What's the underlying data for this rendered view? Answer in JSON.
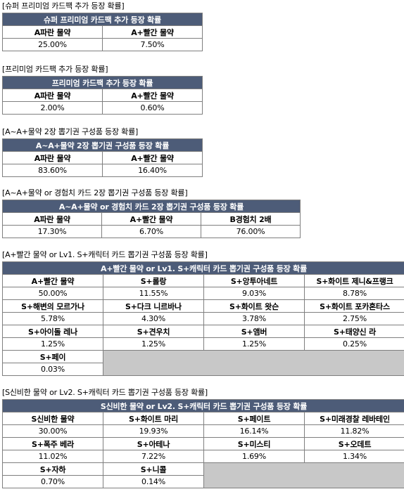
{
  "sections": [
    {
      "title": "[슈퍼 프리미엄 카드팩 추가 등장 확률]",
      "header": "슈퍼 프리미엄 카드팩 추가 등장 확률",
      "rows": [
        [
          {
            "label": "A파란 물약",
            "value": "25.00%"
          },
          {
            "label": "A+빨간 물약",
            "value": "7.50%"
          }
        ]
      ]
    },
    {
      "title": "[프리미엄 카드팩 추가 등장 확률]",
      "header": "프리미엄 카드팩 추가 등장 확률",
      "rows": [
        [
          {
            "label": "A파란 물약",
            "value": "2.00%"
          },
          {
            "label": "A+빨간 물약",
            "value": "0.60%"
          }
        ]
      ]
    },
    {
      "title": "[A~A+물약 2장 뽑기권 구성품 등장 확률]",
      "header": "A~A+물약 2장 뽑기권 구성품 등장 확률",
      "rows": [
        [
          {
            "label": "A파란 물약",
            "value": "83.60%"
          },
          {
            "label": "A+빨간 물약",
            "value": "16.40%"
          }
        ]
      ]
    },
    {
      "title": "[A~A+물약 or 경험치 카드 2장 뽑기권 구성품 등장 확률]",
      "header": "A~A+물약 or 경험치 카드 2장 뽑기권 구성품 등장 확률",
      "rows": [
        [
          {
            "label": "A파란 물약",
            "value": "17.30%"
          },
          {
            "label": "A+빨간 물약",
            "value": "6.70%"
          },
          {
            "label": "B경험치 2배",
            "value": "76.00%"
          }
        ]
      ]
    },
    {
      "title": "[A+빨간 물약 or Lv1. S+캐릭터 카드 뽑기권 구성품 등장 확률]",
      "header": "A+빨간 물약 or Lv1. S+캐릭터 카드 뽑기권 구성품 등장 확률",
      "rows": [
        [
          {
            "label": "A+빨간 물약",
            "value": "50.00%"
          },
          {
            "label": "S+롤랑",
            "value": "11.55%"
          },
          {
            "label": "S+앙투아네트",
            "value": "9.03%"
          },
          {
            "label": "S+화이트 제니&프랭크",
            "value": "8.78%"
          }
        ],
        [
          {
            "label": "S+해변의 모르가나",
            "value": "5.78%"
          },
          {
            "label": "S+다크 니르바나",
            "value": "4.30%"
          },
          {
            "label": "S+화이트 왓슨",
            "value": "3.78%"
          },
          {
            "label": "S+화이트 포카혼타스",
            "value": "2.75%"
          }
        ],
        [
          {
            "label": "S+아이돌 레나",
            "value": "1.25%"
          },
          {
            "label": "S+견우치",
            "value": "1.25%"
          },
          {
            "label": "S+앰버",
            "value": "1.25%"
          },
          {
            "label": "S+태양신 라",
            "value": "0.25%"
          }
        ],
        [
          {
            "label": "S+페이",
            "value": "0.03%"
          }
        ]
      ]
    },
    {
      "title": "[S신비한 물약 or Lv2. S+캐릭터 카드 뽑기권 구성품 등장 확률]",
      "header": "S신비한 물약 or Lv2. S+캐릭터 카드 뽑기권 구성품 등장 확률",
      "rows": [
        [
          {
            "label": "S신비한 물약",
            "value": "30.00%"
          },
          {
            "label": "S+화이트 마리",
            "value": "19.93%"
          },
          {
            "label": "S+페이트",
            "value": "16.14%"
          },
          {
            "label": "S+미래경찰 레바테인",
            "value": "11.82%"
          }
        ],
        [
          {
            "label": "S+폭주 베라",
            "value": "11.02%"
          },
          {
            "label": "S+아테나",
            "value": "7.22%"
          },
          {
            "label": "S+미스티",
            "value": "1.69%"
          },
          {
            "label": "S+오데트",
            "value": "1.34%"
          }
        ],
        [
          {
            "label": "S+자하",
            "value": "0.70%"
          },
          {
            "label": "S+니콜",
            "value": "0.14%"
          }
        ]
      ]
    }
  ]
}
